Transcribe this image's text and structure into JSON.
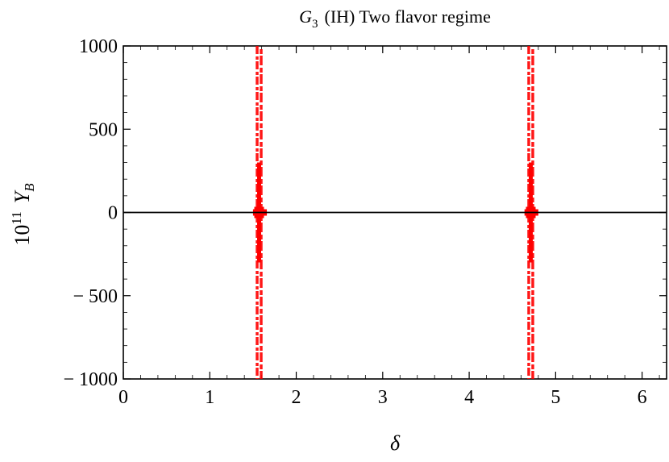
{
  "chart_data": {
    "type": "scatter",
    "title": {
      "symbol": "G",
      "subscript": "3",
      "rest": "(IH) Two flavor regime"
    },
    "xlabel": "δ",
    "ylabel": {
      "base": "10",
      "exponent": "11",
      "symbol": "Y",
      "subscript": "B"
    },
    "xlim": [
      0,
      6.2832
    ],
    "ylim": [
      -1000,
      1000
    ],
    "x_ticks": [
      0,
      1,
      2,
      3,
      4,
      5,
      6
    ],
    "x_tick_labels": [
      "0",
      "1",
      "2",
      "3",
      "4",
      "5",
      "6"
    ],
    "y_ticks": [
      1000,
      500,
      0,
      -500,
      -1000
    ],
    "y_tick_labels": [
      "1000",
      "500",
      "0",
      "− 500",
      "− 1000"
    ],
    "zero_line": true,
    "grid": false,
    "marker_color": "#ff0000",
    "series": [
      {
        "x": 1.5708,
        "y_range": [
          -1000,
          1000
        ],
        "zero_cluster_x": [
          1.5,
          1.66
        ]
      },
      {
        "x": 4.7124,
        "y_range": [
          -1000,
          1000
        ],
        "zero_cluster_x": [
          4.64,
          4.8
        ]
      }
    ]
  }
}
